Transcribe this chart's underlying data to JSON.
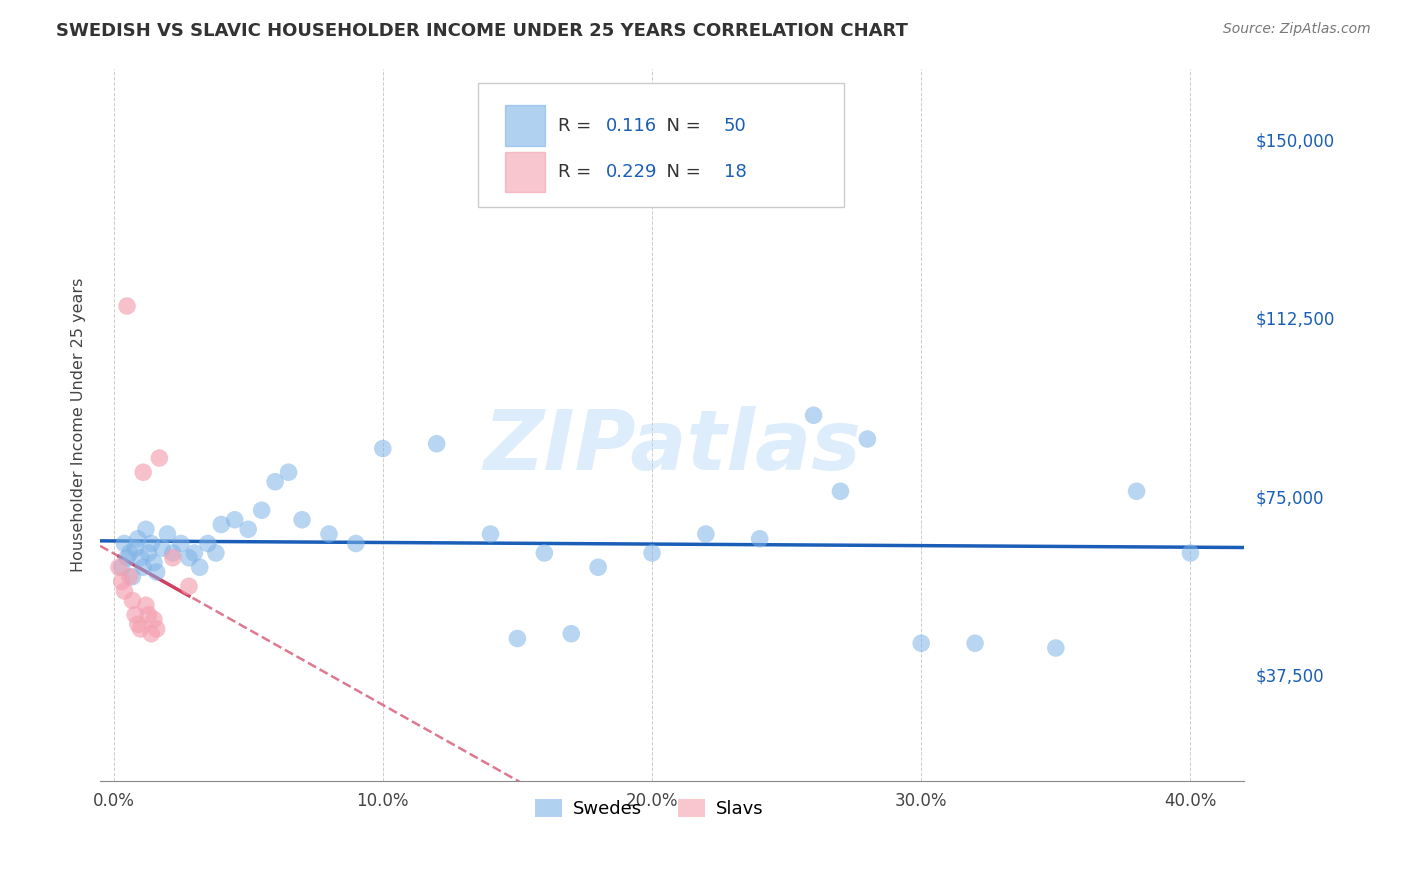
{
  "title": "SWEDISH VS SLAVIC HOUSEHOLDER INCOME UNDER 25 YEARS CORRELATION CHART",
  "source": "Source: ZipAtlas.com",
  "xlabel_ticks": [
    "0.0%",
    "10.0%",
    "20.0%",
    "30.0%",
    "40.0%"
  ],
  "xlabel_tick_vals": [
    0.0,
    0.1,
    0.2,
    0.3,
    0.4
  ],
  "ylabel_ticks": [
    "$37,500",
    "$75,000",
    "$112,500",
    "$150,000"
  ],
  "ylabel_tick_vals": [
    37500,
    75000,
    112500,
    150000
  ],
  "ylabel_label": "Householder Income Under 25 years",
  "xlim": [
    -0.005,
    0.42
  ],
  "ylim": [
    15000,
    165000
  ],
  "legend_blue_r": "0.116",
  "legend_blue_n": "50",
  "legend_pink_r": "0.229",
  "legend_pink_n": "18",
  "blue_color": "#7EB3E8",
  "pink_color": "#F4A0B0",
  "trendline_blue_color": "#1a5eb8",
  "trendline_pink_color": "#d04060",
  "watermark": "ZIPatlas",
  "swedes_x": [
    0.003,
    0.004,
    0.005,
    0.006,
    0.007,
    0.008,
    0.009,
    0.01,
    0.011,
    0.012,
    0.013,
    0.014,
    0.015,
    0.016,
    0.018,
    0.02,
    0.022,
    0.025,
    0.028,
    0.03,
    0.032,
    0.035,
    0.038,
    0.04,
    0.045,
    0.05,
    0.055,
    0.06,
    0.065,
    0.07,
    0.08,
    0.09,
    0.1,
    0.12,
    0.14,
    0.16,
    0.18,
    0.2,
    0.22,
    0.24,
    0.26,
    0.27,
    0.28,
    0.3,
    0.32,
    0.35,
    0.38,
    0.4,
    0.15,
    0.17
  ],
  "swedes_y": [
    60000,
    65000,
    62000,
    63000,
    58000,
    64000,
    66000,
    62000,
    60000,
    68000,
    63000,
    65000,
    61000,
    59000,
    64000,
    67000,
    63000,
    65000,
    62000,
    63000,
    60000,
    65000,
    63000,
    69000,
    70000,
    68000,
    72000,
    78000,
    80000,
    70000,
    67000,
    65000,
    85000,
    86000,
    67000,
    63000,
    60000,
    63000,
    67000,
    66000,
    92000,
    76000,
    87000,
    44000,
    44000,
    43000,
    76000,
    63000,
    45000,
    46000
  ],
  "slavs_x": [
    0.002,
    0.003,
    0.004,
    0.005,
    0.006,
    0.007,
    0.008,
    0.009,
    0.01,
    0.011,
    0.012,
    0.013,
    0.014,
    0.015,
    0.016,
    0.017,
    0.022,
    0.028
  ],
  "slavs_y": [
    60000,
    57000,
    55000,
    115000,
    58000,
    53000,
    50000,
    48000,
    47000,
    80000,
    52000,
    50000,
    46000,
    49000,
    47000,
    83000,
    62000,
    56000
  ]
}
